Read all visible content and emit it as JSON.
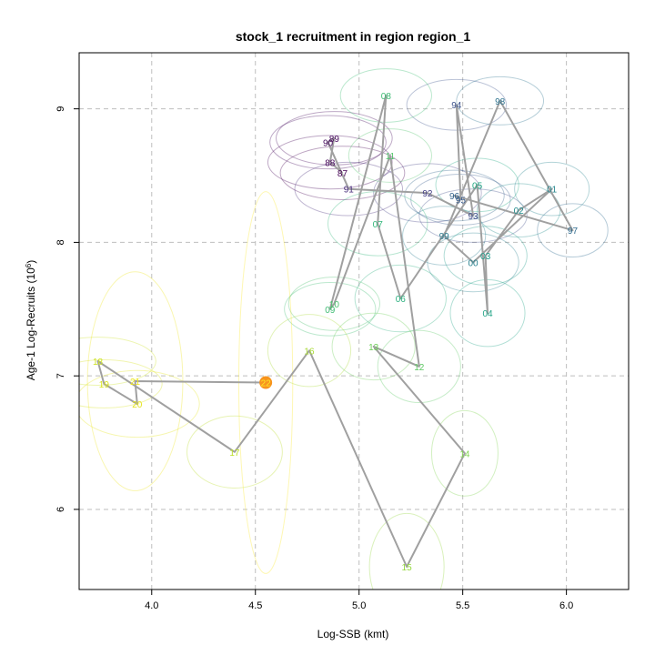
{
  "chart_data": {
    "type": "scatter",
    "title": "stock_1 recruitment in region region_1",
    "xlabel": "Log-SSB (kmt)",
    "ylabel": "Age-1 Log-Recruits (10",
    "ylabel_sup": "6",
    "ylabel_end": ")",
    "xlim": [
      3.65,
      6.3
    ],
    "ylim": [
      5.4,
      9.42
    ],
    "xticks": [
      4.0,
      4.5,
      5.0,
      5.5,
      6.0
    ],
    "xtick_labels": [
      "4.0",
      "4.5",
      "5.0",
      "5.5",
      "6.0"
    ],
    "yticks": [
      6,
      7,
      8,
      9
    ],
    "ytick_labels": [
      "6",
      "7",
      "8",
      "9"
    ],
    "grid": true,
    "path_color": "#A0A0A0",
    "current_point_color": "#F7941D",
    "points": [
      {
        "label": "87",
        "x": 4.92,
        "y": 8.52,
        "color": "#440154",
        "rx": 0.3,
        "ry": 0.2
      },
      {
        "label": "88",
        "x": 4.86,
        "y": 8.6,
        "color": "#450559",
        "rx": 0.3,
        "ry": 0.2
      },
      {
        "label": "89",
        "x": 4.88,
        "y": 8.78,
        "color": "#46085C",
        "rx": 0.28,
        "ry": 0.2
      },
      {
        "label": "90",
        "x": 4.85,
        "y": 8.75,
        "color": "#460B5E",
        "rx": 0.28,
        "ry": 0.2
      },
      {
        "label": "91",
        "x": 4.95,
        "y": 8.4,
        "color": "#472D7B",
        "rx": 0.26,
        "ry": 0.2
      },
      {
        "label": "92",
        "x": 5.33,
        "y": 8.37,
        "color": "#433E85",
        "rx": 0.26,
        "ry": 0.22
      },
      {
        "label": "93",
        "x": 5.55,
        "y": 8.2,
        "color": "#3E4C8A",
        "rx": 0.26,
        "ry": 0.2
      },
      {
        "label": "94",
        "x": 5.47,
        "y": 9.03,
        "color": "#3B528B",
        "rx": 0.24,
        "ry": 0.19
      },
      {
        "label": "95",
        "x": 5.49,
        "y": 8.32,
        "color": "#375B8D",
        "rx": 0.24,
        "ry": 0.19
      },
      {
        "label": "96",
        "x": 5.46,
        "y": 8.35,
        "color": "#33638D",
        "rx": 0.24,
        "ry": 0.19
      },
      {
        "label": "97",
        "x": 6.03,
        "y": 8.09,
        "color": "#2F6B8E",
        "rx": 0.17,
        "ry": 0.2
      },
      {
        "label": "98",
        "x": 5.68,
        "y": 9.06,
        "color": "#2C728E",
        "rx": 0.21,
        "ry": 0.18
      },
      {
        "label": "99",
        "x": 5.41,
        "y": 8.05,
        "color": "#297A8E",
        "rx": 0.2,
        "ry": 0.22
      },
      {
        "label": "00",
        "x": 5.55,
        "y": 7.85,
        "color": "#27808E",
        "rx": 0.22,
        "ry": 0.22
      },
      {
        "label": "01",
        "x": 5.93,
        "y": 8.4,
        "color": "#25858E",
        "rx": 0.18,
        "ry": 0.2
      },
      {
        "label": "02",
        "x": 5.77,
        "y": 8.24,
        "color": "#228C8D",
        "rx": 0.2,
        "ry": 0.2
      },
      {
        "label": "03",
        "x": 5.61,
        "y": 7.9,
        "color": "#1F9A8A",
        "rx": 0.2,
        "ry": 0.22
      },
      {
        "label": "04",
        "x": 5.62,
        "y": 7.47,
        "color": "#20A386",
        "rx": 0.18,
        "ry": 0.25
      },
      {
        "label": "05",
        "x": 5.57,
        "y": 8.43,
        "color": "#22A884",
        "rx": 0.2,
        "ry": 0.2
      },
      {
        "label": "06",
        "x": 5.2,
        "y": 7.58,
        "color": "#2BB07F",
        "rx": 0.22,
        "ry": 0.25
      },
      {
        "label": "07",
        "x": 5.09,
        "y": 8.14,
        "color": "#33B67A",
        "rx": 0.24,
        "ry": 0.24
      },
      {
        "label": "08",
        "x": 5.13,
        "y": 9.1,
        "color": "#3DBC74",
        "rx": 0.22,
        "ry": 0.2
      },
      {
        "label": "09",
        "x": 4.86,
        "y": 7.5,
        "color": "#3FBC73",
        "rx": 0.22,
        "ry": 0.2
      },
      {
        "label": "10",
        "x": 4.88,
        "y": 7.54,
        "color": "#4AC16D",
        "rx": 0.22,
        "ry": 0.2
      },
      {
        "label": "11",
        "x": 5.15,
        "y": 8.65,
        "color": "#50C46A",
        "rx": 0.2,
        "ry": 0.2
      },
      {
        "label": "12",
        "x": 5.29,
        "y": 7.07,
        "color": "#5DC863",
        "rx": 0.2,
        "ry": 0.27
      },
      {
        "label": "13",
        "x": 5.07,
        "y": 7.22,
        "color": "#6ECE58",
        "rx": 0.2,
        "ry": 0.25
      },
      {
        "label": "14",
        "x": 5.51,
        "y": 6.42,
        "color": "#7FD34E",
        "rx": 0.16,
        "ry": 0.32
      },
      {
        "label": "15",
        "x": 5.23,
        "y": 5.57,
        "color": "#95D840",
        "rx": 0.18,
        "ry": 0.4
      },
      {
        "label": "16",
        "x": 4.76,
        "y": 7.19,
        "color": "#A8DB34",
        "rx": 0.2,
        "ry": 0.27
      },
      {
        "label": "17",
        "x": 4.4,
        "y": 6.43,
        "color": "#BADE27",
        "rx": 0.23,
        "ry": 0.27
      },
      {
        "label": "18",
        "x": 3.74,
        "y": 7.11,
        "color": "#CAE11F",
        "rx": 0.28,
        "ry": 0.18
      },
      {
        "label": "19",
        "x": 3.77,
        "y": 6.94,
        "color": "#D8E219",
        "rx": 0.28,
        "ry": 0.18
      },
      {
        "label": "20",
        "x": 3.93,
        "y": 6.79,
        "color": "#E5E419",
        "rx": 0.3,
        "ry": 0.25
      },
      {
        "label": "21",
        "x": 3.92,
        "y": 6.96,
        "color": "#EFE51C",
        "rx": 0.23,
        "ry": 0.82
      },
      {
        "label": "22",
        "x": 4.55,
        "y": 6.95,
        "color": "#FDE725",
        "rx": 0.13,
        "ry": 1.43
      }
    ]
  }
}
